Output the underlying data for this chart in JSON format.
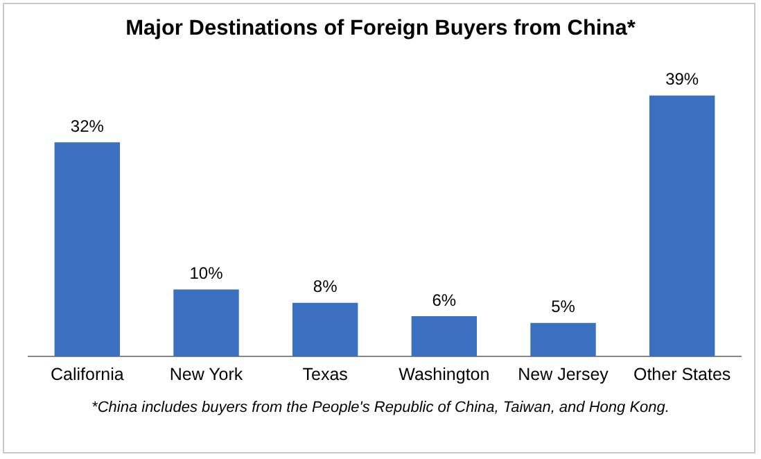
{
  "chart_data": {
    "type": "bar",
    "title": "Major Destinations of Foreign Buyers from China*",
    "categories": [
      "California",
      "New York",
      "Texas",
      "Washington",
      "New Jersey",
      "Other States"
    ],
    "values": [
      32,
      10,
      8,
      6,
      5,
      39
    ],
    "value_labels": [
      "32%",
      "10%",
      "8%",
      "6%",
      "5%",
      "39%"
    ],
    "color": "#3b6fc0",
    "grid": false,
    "legend": false,
    "annotations": [
      "*China includes buyers from the People's Republic of China, Taiwan, and Hong Kong."
    ]
  }
}
